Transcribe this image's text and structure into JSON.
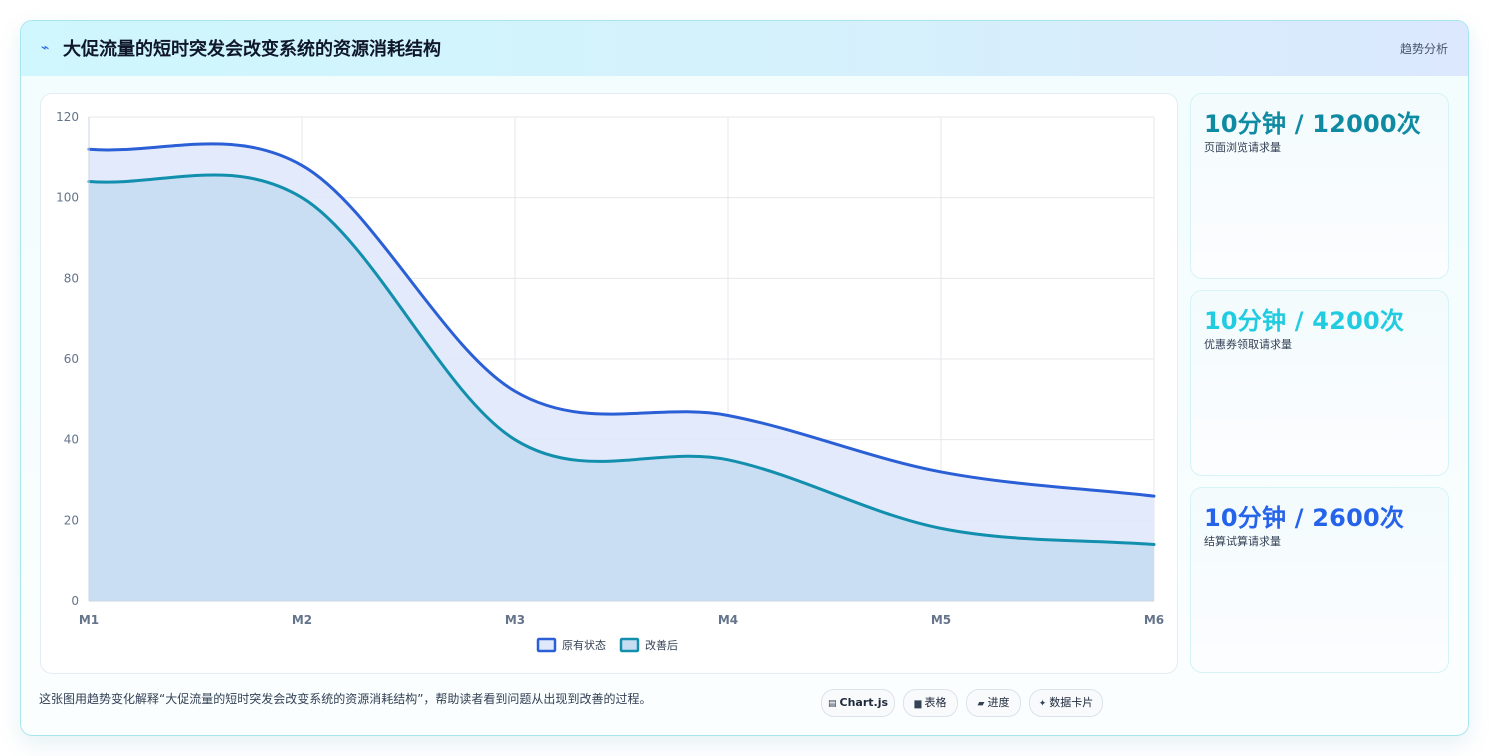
{
  "header": {
    "icon": "sparkle-icon",
    "title": "大促流量的短时突发会改变系统的资源消耗结构",
    "tag": "趋势分析"
  },
  "chart_data": {
    "type": "area",
    "categories": [
      "M1",
      "M2",
      "M3",
      "M4",
      "M5",
      "M6"
    ],
    "ylim": [
      0,
      120
    ],
    "yticks": [
      "0",
      "20",
      "40",
      "60",
      "80",
      "100",
      "120"
    ],
    "grid": true,
    "legend_position": "bottom",
    "series": [
      {
        "name": "原有状态",
        "values": [
          112,
          108,
          52,
          46,
          32,
          26
        ],
        "color": "#2b5fd6",
        "fill": "#e0e8fb"
      },
      {
        "name": "改善后",
        "values": [
          104,
          100,
          40,
          35,
          18,
          14
        ],
        "color": "#138fae",
        "fill": "#c6ddf2"
      }
    ]
  },
  "stats": [
    {
      "value": "10分钟 / 12000次",
      "label": "页面浏览请求量",
      "color": "#0e8aa3"
    },
    {
      "value": "10分钟 / 4200次",
      "label": "优惠券领取请求量",
      "color": "#22cce0"
    },
    {
      "value": "10分钟 / 2600次",
      "label": "结算试算请求量",
      "color": "#2563eb"
    }
  ],
  "footer": {
    "text": "这张图用趋势变化解释“大促流量的短时突发会改变系统的资源消耗结构”，帮助读者看到问题从出现到改善的过程。",
    "chips": [
      {
        "icon": "▤",
        "icon_name": "chart-icon",
        "label": "Chart.js",
        "bold": true
      },
      {
        "icon": "▆",
        "icon_name": "table-icon",
        "label": "表格"
      },
      {
        "icon": "▰",
        "icon_name": "progress-icon",
        "label": "进度"
      },
      {
        "icon": "✦",
        "icon_name": "card-icon",
        "label": "数据卡片"
      }
    ]
  }
}
